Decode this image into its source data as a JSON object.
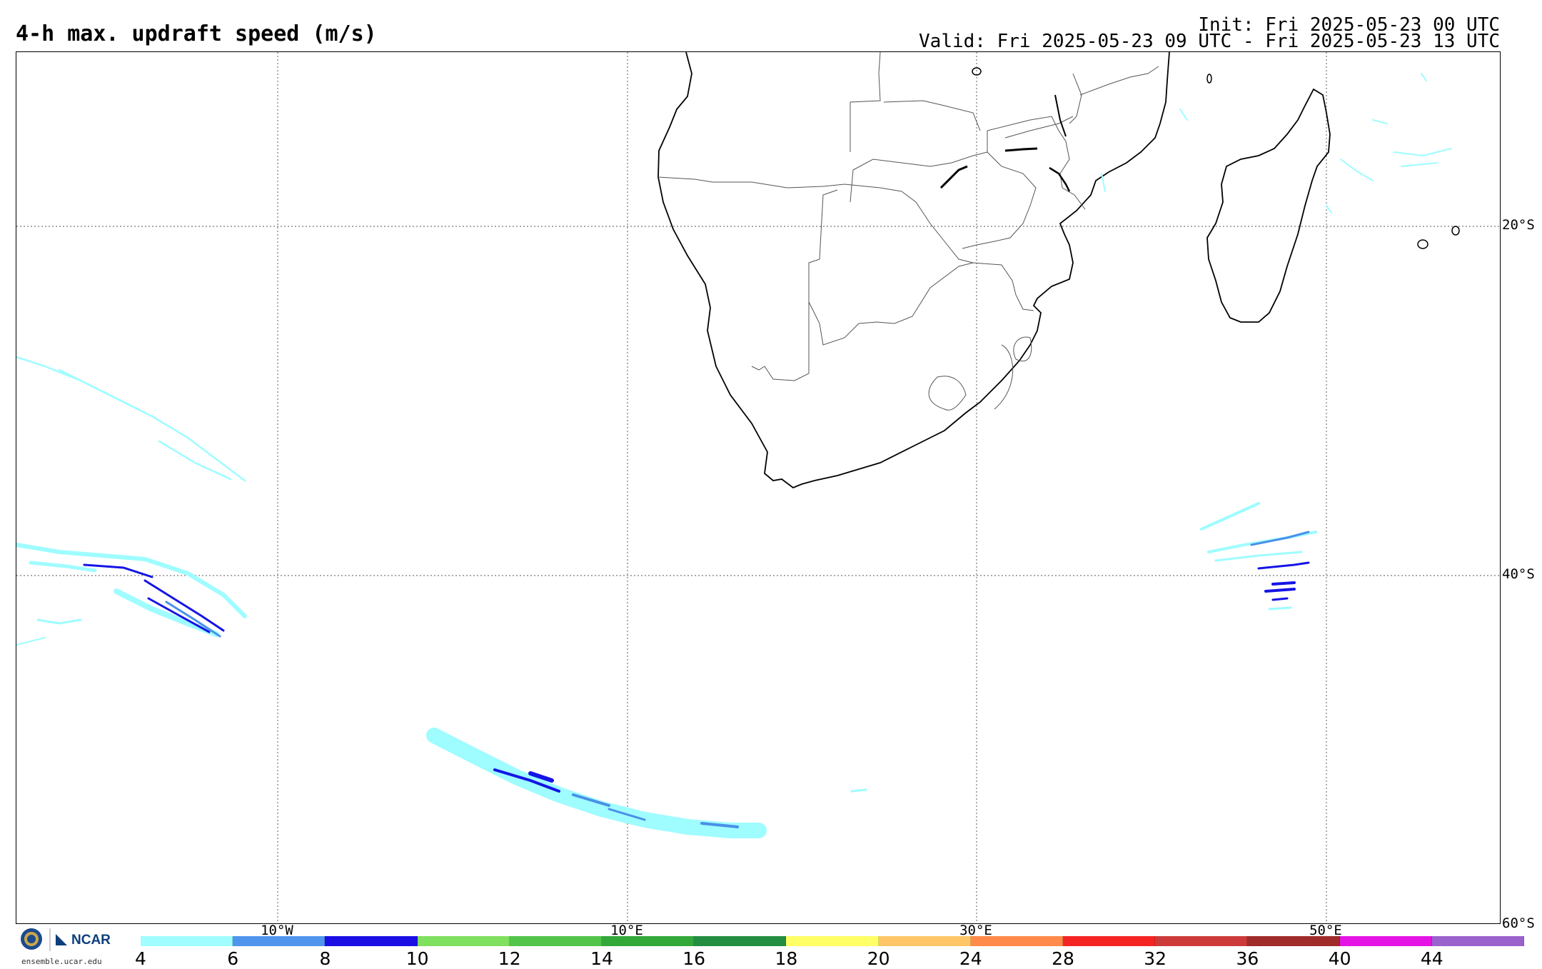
{
  "header": {
    "title": "4-h max. updraft speed (m/s)",
    "init": "Init: Fri 2025-05-23 00 UTC",
    "valid": "Valid: Fri 2025-05-23 09 UTC - Fri 2025-05-23 13 UTC"
  },
  "map": {
    "lat_labels": [
      "20°S",
      "40°S",
      "60°S"
    ],
    "lon_labels": [
      "10°W",
      "10°E",
      "30°E",
      "50°E"
    ],
    "feature_colors": {
      "coast": "#000000",
      "borders": "#555555",
      "light": "#9ffcff",
      "mid": "#4a90e8",
      "dark": "#1414e6"
    }
  },
  "logo": {
    "org": "NCAR",
    "url": "ensemble.ucar.edu"
  },
  "legend": {
    "ticks": [
      "4",
      "6",
      "8",
      "10",
      "12",
      "14",
      "16",
      "18",
      "20",
      "24",
      "28",
      "32",
      "36",
      "40",
      "44"
    ],
    "colors": [
      "#a0fdff",
      "#4f95ee",
      "#1a0ee4",
      "#7fdf5e",
      "#52c44a",
      "#33a83a",
      "#238e41",
      "#ffff66",
      "#ffc668",
      "#ff8a4a",
      "#f52424",
      "#cc3a3a",
      "#9f2b2b",
      "#e414e4",
      "#9a62cc"
    ]
  }
}
